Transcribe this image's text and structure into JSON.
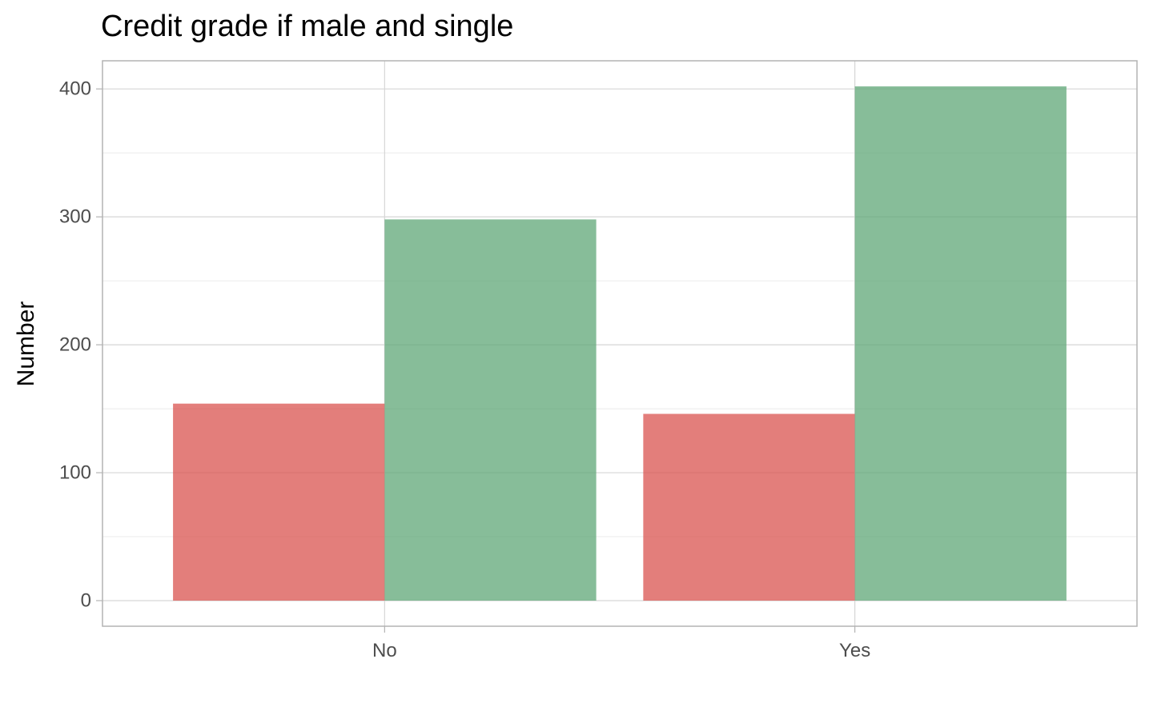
{
  "chart_data": {
    "type": "bar",
    "title": "Credit grade if male and single",
    "xlabel": "",
    "ylabel": "Number",
    "categories": [
      "No",
      "Yes"
    ],
    "series": [
      {
        "values": [
          154,
          146
        ],
        "color": "#d9534f"
      },
      {
        "values": [
          298,
          402
        ],
        "color": "#5fa777"
      }
    ],
    "ylim": [
      -20,
      422
    ],
    "yticks": [
      0,
      100,
      200,
      300,
      400
    ],
    "grid": true,
    "legend": "none"
  }
}
